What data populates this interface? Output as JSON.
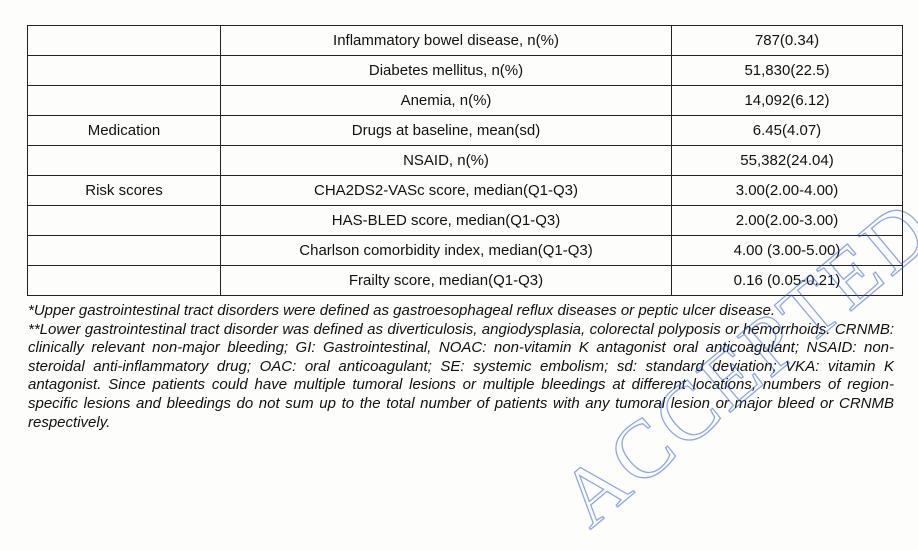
{
  "table": {
    "rows": [
      {
        "category": "",
        "variable": "Inflammatory bowel disease, n(%)",
        "value": "787(0.34)"
      },
      {
        "category": "",
        "variable": "Diabetes mellitus, n(%)",
        "value": "51,830(22.5)"
      },
      {
        "category": "",
        "variable": "Anemia, n(%)",
        "value": "14,092(6.12)"
      },
      {
        "category": "Medication",
        "variable": "Drugs at baseline, mean(sd)",
        "value": "6.45(4.07)"
      },
      {
        "category": "",
        "variable": "NSAID, n(%)",
        "value": "55,382(24.04)"
      },
      {
        "category": "Risk scores",
        "variable": "CHA2DS2-VASc score, median(Q1-Q3)",
        "value": "3.00(2.00-4.00)"
      },
      {
        "category": "",
        "variable": "HAS-BLED score, median(Q1-Q3)",
        "value": "2.00(2.00-3.00)"
      },
      {
        "category": "",
        "variable": "Charlson comorbidity index, median(Q1-Q3)",
        "value": "4.00 (3.00-5.00)"
      },
      {
        "category": "",
        "variable": "Frailty score, median(Q1-Q3)",
        "value": "0.16 (0.05-0.21)"
      }
    ]
  },
  "footnotes": {
    "upper_gi": "*Upper gastrointestinal tract disorders were defined as gastroesophageal reflux diseases or peptic ulcer disease.",
    "lower_gi": "**Lower gastrointestinal tract disorder was defined as diverticulosis, angiodysplasia, colorectal polyposis or hemorrhoids. CRNMB: clinically relevant non-major bleeding; GI: Gastrointestinal, NOAC: non-vitamin K antagonist oral anticoagulant; NSAID: non-steroidal anti-inflammatory drug; OAC: oral anticoagulant; SE: systemic embolism; sd: standard deviation; VKA: vitamin K antagonist. Since patients could have multiple tumoral lesions or multiple bleedings at different locations, numbers of region-specific lesions and bleedings do not sum up to the total number of patients with any tumoral lesion or major bleed or CRNMB respectively."
  },
  "watermark": {
    "text": "ACCEPTED MANUSCRIPT",
    "color": "#1f4fd0"
  }
}
